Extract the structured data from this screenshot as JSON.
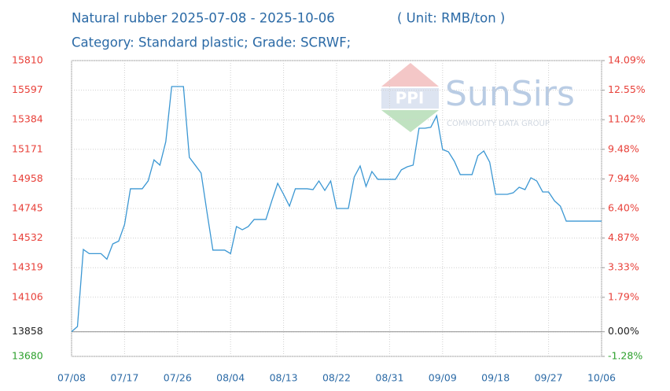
{
  "chart_data": {
    "type": "line",
    "title": "Natural rubber 2025-07-08 - 2025-10-06",
    "unit": "( Unit: RMB/ton )",
    "subtitle": "Category: Standard plastic; Grade: SCRWF;",
    "watermark": {
      "logo": "PPI",
      "brand": "SunSirs",
      "tagline": "COMMODITY DATA GROUP"
    },
    "categories": [
      "07/08",
      null,
      null,
      null,
      null,
      null,
      null,
      null,
      null,
      "07/17",
      null,
      null,
      null,
      null,
      null,
      null,
      null,
      null,
      "07/26",
      null,
      null,
      null,
      null,
      null,
      null,
      null,
      null,
      "08/04",
      null,
      null,
      null,
      null,
      null,
      null,
      null,
      null,
      "08/13",
      null,
      null,
      null,
      null,
      null,
      null,
      null,
      null,
      "08/22",
      null,
      null,
      null,
      null,
      null,
      null,
      null,
      null,
      "08/31",
      null,
      null,
      null,
      null,
      null,
      null,
      null,
      null,
      "09/09",
      null,
      null,
      null,
      null,
      null,
      null,
      null,
      null,
      "09/18",
      null,
      null,
      null,
      null,
      null,
      null,
      null,
      null,
      "09/27",
      null,
      null,
      null,
      null,
      null,
      null,
      null,
      null,
      "10/06"
    ],
    "series": [
      {
        "name": "Natural rubber",
        "color": "#3b97d3",
        "values": [
          13858,
          13895,
          14450,
          14420,
          14420,
          14420,
          14380,
          14490,
          14510,
          14630,
          14887,
          14887,
          14887,
          14943,
          15095,
          15057,
          15226,
          15623,
          15623,
          15623,
          15113,
          15057,
          15000,
          14717,
          14445,
          14445,
          14445,
          14420,
          14615,
          14592,
          14615,
          14666,
          14666,
          14666,
          14800,
          14926,
          14847,
          14762,
          14887,
          14887,
          14887,
          14881,
          14943,
          14875,
          14943,
          14745,
          14745,
          14745,
          14972,
          15051,
          14904,
          15011,
          14955,
          14955,
          14955,
          14955,
          15023,
          15045,
          15057,
          15323,
          15323,
          15330,
          15413,
          15170,
          15153,
          15085,
          14989,
          14989,
          14989,
          15125,
          15159,
          15079,
          14847,
          14847,
          14847,
          14858,
          14898,
          14881,
          14966,
          14943,
          14864,
          14864,
          14800,
          14762,
          14654,
          14654,
          14654,
          14654,
          14654,
          14654,
          14654
        ]
      }
    ],
    "ylim": [
      13680,
      15810
    ],
    "yticks": [
      15810,
      15597,
      15384,
      15171,
      14958,
      14745,
      14532,
      14319,
      14106,
      13858,
      13680
    ],
    "y2lim": [
      -1.28,
      14.09
    ],
    "y2ticks": [
      {
        "value": 14.09,
        "label": "14.09%"
      },
      {
        "value": 12.55,
        "label": "12.55%"
      },
      {
        "value": 11.02,
        "label": "11.02%"
      },
      {
        "value": 9.48,
        "label": "9.48%"
      },
      {
        "value": 7.94,
        "label": "7.94%"
      },
      {
        "value": 6.4,
        "label": "6.40%"
      },
      {
        "value": 4.87,
        "label": "4.87%"
      },
      {
        "value": 3.33,
        "label": "3.33%"
      },
      {
        "value": 1.79,
        "label": "1.79%"
      },
      {
        "value": 0,
        "label": "0.00%"
      },
      {
        "value": -1.28,
        "label": "-1.28%"
      }
    ],
    "tick_colors": {
      "positive": "#e8413a",
      "zero": "#222222",
      "negative": "#2ca02c"
    },
    "grid": true
  }
}
